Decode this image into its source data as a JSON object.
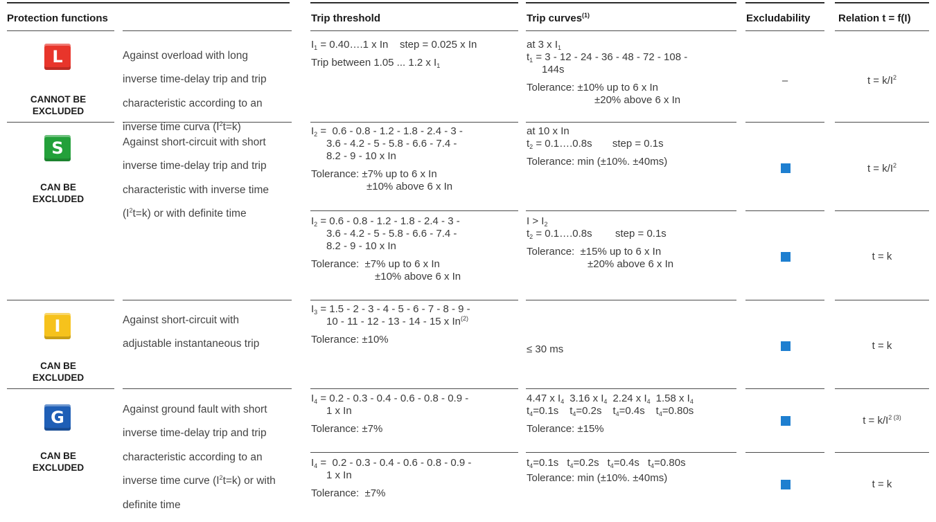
{
  "headers": {
    "protection": "Protection functions",
    "threshold": "Trip threshold",
    "curves": "Trip curves",
    "curves_sup": "(1)",
    "excludability": "Excludability",
    "relation": "Relation t = f(I)"
  },
  "colors": {
    "L": "#e8352b",
    "S": "#23a03a",
    "I": "#f6c21c",
    "G": "#1f5fb6",
    "excludable_marker": "#1e7fd0"
  },
  "L": {
    "letter": "L",
    "label1": "CANNOT BE",
    "label2": "EXCLUDED",
    "desc": [
      "Against overload with long",
      "inverse time-delay trip and trip",
      "characteristic according to an"
    ],
    "desc4a": "inverse time curva (I",
    "desc4sup": "2",
    "desc4b": "t=k)",
    "thr1a": "I",
    "thr1sub": "1",
    "thr1b": " = 0.40….1 x In    step = 0.025 x In",
    "thr2a": "Trip between 1.05 ... 1.2 x I",
    "thr2sub": "1",
    "cur1a": "at 3 x I",
    "cur1sub": "1",
    "cur2a": "t",
    "cur2sub": "1",
    "cur2b": " = 3 - 12 - 24 - 36 - 48 - 72 - 108 -",
    "cur3": "144s",
    "cur4": "Tolerance: ±10% up to 6 x In",
    "cur5": "±20% above 6 x In",
    "excl": "–",
    "rel_a": "t = k/I",
    "rel_sup": "2"
  },
  "S": {
    "letter": "S",
    "label1": "CAN BE",
    "label2": "EXCLUDED",
    "desc": [
      "Against short-circuit with short",
      "inverse time-delay trip and trip",
      "characteristic with inverse time"
    ],
    "desc4a": "(I",
    "desc4sup": "2",
    "desc4b": "t=k) or with definite time",
    "r1": {
      "thr1a": "I",
      "thr1sub": "2",
      "thr1b": " =  0.6 - 0.8 - 1.2 - 1.8 - 2.4 - 3 -",
      "thr2": "3.6 - 4.2 - 5 - 5.8 - 6.6 - 7.4 -",
      "thr3": "8.2 - 9 - 10 x In",
      "thr4": "Tolerance: ±7% up to 6 x In",
      "thr5": "±10% above 6 x In",
      "cur1": "at 10 x In",
      "cur2a": "t",
      "cur2sub": "2",
      "cur2b": " = 0.1….0.8s       step = 0.1s",
      "cur3": "Tolerance: min (±10%. ±40ms)",
      "rel_a": "t = k/I",
      "rel_sup": "2"
    },
    "r2": {
      "thr1a": "I",
      "thr1sub": "2",
      "thr1b": " = 0.6 - 0.8 - 1.2 - 1.8 - 2.4 - 3 -",
      "thr2": "3.6 - 4.2 - 5 - 5.8 - 6.6 - 7.4 -",
      "thr3": "8.2 - 9 - 10 x In",
      "thr4": "Tolerance:  ±7% up to 6 x In",
      "thr5": "±10% above 6 x In",
      "cur1a": "I > I",
      "cur1sub": "2",
      "cur2a": "t",
      "cur2sub": "2",
      "cur2b": " = 0.1….0.8s        step = 0.1s",
      "cur3": "Tolerance:  ±15% up to 6 x In",
      "cur4": "±20% above 6 x In",
      "rel": "t = k"
    }
  },
  "I": {
    "letter": "I",
    "label1": "CAN BE",
    "label2": "EXCLUDED",
    "desc": [
      "Against short-circuit with",
      "adjustable instantaneous trip"
    ],
    "thr1a": "I",
    "thr1sub": "3",
    "thr1b": " = 1.5 - 2 - 3 - 4 - 5 - 6 - 7 - 8 - 9 -",
    "thr2a": "10 - 11 - 12 - 13 - 14 - 15 x In",
    "thr2sup": "(2)",
    "thr3": "Tolerance: ±10%",
    "cur": "≤ 30 ms",
    "rel": "t = k"
  },
  "G": {
    "letter": "G",
    "label1": "CAN BE",
    "label2": "EXCLUDED",
    "desc": [
      "Against ground fault with short",
      "inverse time-delay trip and trip",
      "characteristic according to an"
    ],
    "desc4a": "inverse time curve (I",
    "desc4sup": "2",
    "desc4b": "t=k) or with",
    "desc5": "definite time",
    "r1": {
      "thr1a": "I",
      "thr1sub": "4",
      "thr1b": " = 0.2 - 0.3 - 0.4 - 0.6 - 0.8 - 0.9 -",
      "thr2": "1 x In",
      "thr3": "Tolerance: ±7%",
      "cur_cols": [
        {
          "a": "4.47 x I",
          "sub": "4",
          "b": "t",
          "bsub": "4",
          "c": "=0.1s"
        },
        {
          "a": "3.16 x I",
          "sub": "4",
          "b": "t",
          "bsub": "4",
          "c": "=0.2s"
        },
        {
          "a": "2.24 x I",
          "sub": "4",
          "b": "t",
          "bsub": "4",
          "c": "=0.4s"
        },
        {
          "a": "1.58 x I",
          "sub": "4",
          "b": "t",
          "bsub": "4",
          "c": "=0.80s"
        }
      ],
      "cur3": "Tolerance: ±15%",
      "rel_a": "t = k/I",
      "rel_sup": "2 (3)"
    },
    "r2": {
      "thr1a": "I",
      "thr1sub": "4",
      "thr1b": " =  0.2 - 0.3 - 0.4 - 0.6 - 0.8 - 0.9 -",
      "thr2": "1 x In",
      "thr3": "Tolerance:  ±7%",
      "cur_cols": [
        {
          "b": "t",
          "bsub": "4",
          "c": "=0.1s"
        },
        {
          "b": "t",
          "bsub": "4",
          "c": "=0.2s"
        },
        {
          "b": "t",
          "bsub": "4",
          "c": "=0.4s"
        },
        {
          "b": "t",
          "bsub": "4",
          "c": "=0.80s"
        }
      ],
      "cur2": "Tolerance: min (±10%. ±40ms)",
      "rel": "t = k"
    }
  }
}
